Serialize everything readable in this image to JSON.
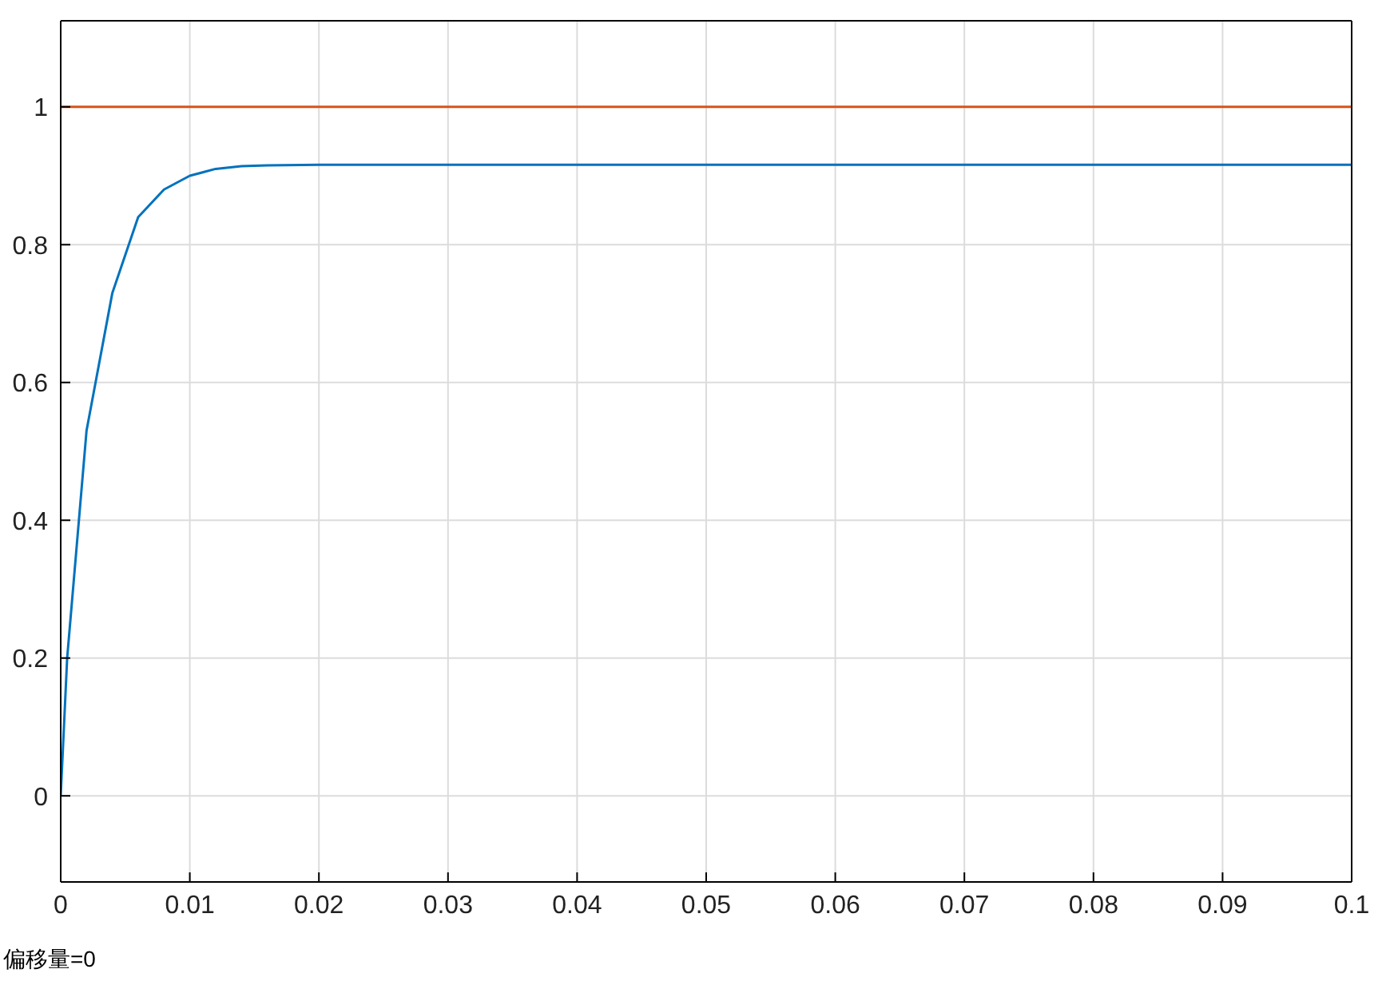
{
  "chart_data": {
    "type": "line",
    "x": [
      0,
      0.0005,
      0.002,
      0.004,
      0.006,
      0.008,
      0.01,
      0.012,
      0.014,
      0.016,
      0.02,
      0.1
    ],
    "series": [
      {
        "color": "#0072bd",
        "values": [
          0,
          0.2,
          0.53,
          0.73,
          0.84,
          0.88,
          0.9,
          0.91,
          0.914,
          0.915,
          0.916,
          0.916
        ]
      },
      {
        "color": "#d95319",
        "x": [
          0,
          0.1
        ],
        "values": [
          1,
          1
        ]
      }
    ],
    "xlim": [
      0,
      0.1
    ],
    "xticks": [
      0,
      0.01,
      0.02,
      0.03,
      0.04,
      0.05,
      0.06,
      0.07,
      0.08,
      0.09,
      0.1
    ],
    "ylim": [
      -0.125,
      1.125
    ],
    "yticks": [
      0,
      0.2,
      0.4,
      0.6,
      0.8,
      1
    ],
    "grid": true,
    "marker": "none",
    "line_style": "solid",
    "legend": false,
    "annotations": [
      "偏移量=0"
    ]
  }
}
